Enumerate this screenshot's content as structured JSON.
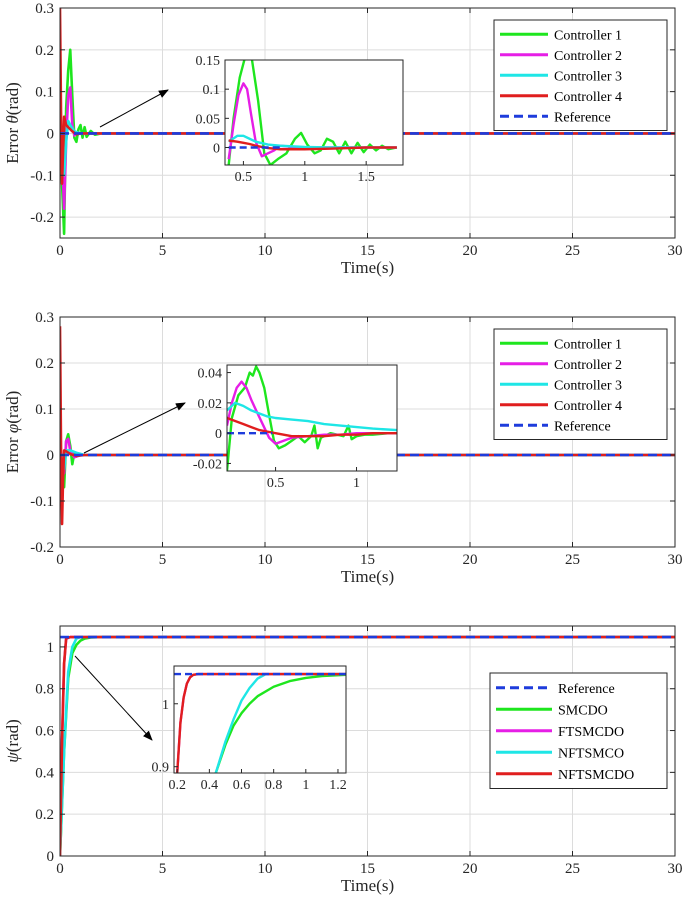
{
  "chart_data": [
    {
      "type": "line",
      "xlabel": "Time(s)",
      "ylabel_prefix": "Error ",
      "ylabel_symbol": "θ",
      "ylabel_suffix": "(rad)",
      "xlim": [
        0,
        30
      ],
      "ylim": [
        -0.25,
        0.3
      ],
      "xticks": [
        0,
        5,
        10,
        15,
        20,
        25,
        30
      ],
      "yticks": [
        -0.2,
        -0.1,
        0,
        0.1,
        0.2,
        0.3
      ],
      "legend_position": "top-right",
      "grid": true,
      "series": [
        {
          "name": "Controller 1",
          "color": "#1ee61e",
          "dash": false,
          "x": [
            0,
            0.1,
            0.2,
            0.3,
            0.4,
            0.5,
            0.6,
            0.7,
            0.8,
            0.9,
            1.0,
            1.1,
            1.2,
            1.3,
            1.5,
            1.7,
            2.0,
            30
          ],
          "y": [
            0,
            -0.12,
            -0.24,
            0.06,
            0.15,
            0.2,
            0.09,
            -0.01,
            -0.02,
            0.01,
            0.02,
            -0.01,
            0.015,
            -0.008,
            0.006,
            -0.003,
            0,
            0
          ]
        },
        {
          "name": "Controller 2",
          "color": "#e61ee6",
          "dash": false,
          "x": [
            0,
            0.1,
            0.2,
            0.3,
            0.4,
            0.5,
            0.6,
            0.7,
            0.8,
            1.0,
            30
          ],
          "y": [
            0,
            -0.05,
            -0.18,
            -0.02,
            0.09,
            0.11,
            0.02,
            -0.005,
            0.002,
            0,
            0
          ]
        },
        {
          "name": "Controller 3",
          "color": "#1ee6e6",
          "dash": false,
          "x": [
            0,
            0.1,
            0.2,
            0.3,
            0.4,
            0.5,
            0.7,
            1.0,
            30
          ],
          "y": [
            0,
            -0.04,
            -0.1,
            -0.02,
            0.03,
            0.02,
            0.005,
            0,
            0
          ]
        },
        {
          "name": "Controller 4",
          "color": "#e01e1e",
          "dash": false,
          "x": [
            0,
            0.05,
            0.1,
            0.15,
            0.2,
            0.3,
            0.4,
            0.5,
            0.6,
            0.8,
            1.0,
            1.2,
            30
          ],
          "y": [
            0.3,
            0.05,
            -0.12,
            -0.04,
            0.04,
            0.02,
            0.015,
            0.01,
            0.005,
            -0.002,
            0,
            0,
            0
          ]
        },
        {
          "name": "Reference",
          "color": "#1e3cdc",
          "dash": true,
          "x": [
            0,
            30
          ],
          "y": [
            0,
            0
          ]
        }
      ],
      "inset": {
        "xlim": [
          0.35,
          1.8
        ],
        "ylim": [
          -0.03,
          0.15
        ],
        "xticks": [
          0.5,
          1,
          1.5
        ],
        "xtick_labels": [
          "0.5",
          "1",
          "1.5"
        ],
        "yticks": [
          0,
          0.05,
          0.1,
          0.15
        ],
        "ytick_labels": [
          "0",
          "0.05",
          "0.1",
          "0.15"
        ],
        "series": [
          {
            "color": "#1ee61e",
            "x": [
              0.38,
              0.42,
              0.47,
              0.52,
              0.57,
              0.62,
              0.67,
              0.72,
              0.78,
              0.85,
              0.92,
              0.97,
              1.02,
              1.08,
              1.13,
              1.18,
              1.23,
              1.28,
              1.33,
              1.38,
              1.43,
              1.48,
              1.53,
              1.58,
              1.63,
              1.68,
              1.75
            ],
            "y": [
              -0.03,
              0.05,
              0.12,
              0.16,
              0.15,
              0.08,
              -0.01,
              -0.03,
              -0.02,
              -0.01,
              0.015,
              0.025,
              0.005,
              -0.01,
              -0.005,
              0.015,
              0.01,
              -0.01,
              0.01,
              -0.01,
              0.008,
              -0.008,
              0.005,
              -0.005,
              0.003,
              -0.003,
              0
            ]
          },
          {
            "color": "#e61ee6",
            "x": [
              0.38,
              0.42,
              0.46,
              0.5,
              0.53,
              0.56,
              0.6,
              0.65,
              0.7,
              0.75,
              0.8,
              0.9,
              1.0,
              1.2,
              1.75
            ],
            "y": [
              -0.02,
              0.04,
              0.09,
              0.11,
              0.1,
              0.06,
              0.01,
              -0.015,
              -0.01,
              -0.005,
              0.003,
              0.001,
              0,
              0,
              0
            ]
          },
          {
            "color": "#1ee6e6",
            "x": [
              0.38,
              0.45,
              0.5,
              0.55,
              0.6,
              0.7,
              0.8,
              1.0,
              1.2,
              1.75
            ],
            "y": [
              0.01,
              0.02,
              0.02,
              0.015,
              0.01,
              0.005,
              0.003,
              0.001,
              0,
              0
            ]
          },
          {
            "color": "#e01e1e",
            "x": [
              0.38,
              0.45,
              0.5,
              0.55,
              0.6,
              0.7,
              0.8,
              1.0,
              1.2,
              1.5,
              1.75
            ],
            "y": [
              0.012,
              0.01,
              0.008,
              0.006,
              0.003,
              -0.001,
              -0.003,
              -0.003,
              -0.002,
              0,
              0
            ]
          },
          {
            "color": "#1e3cdc",
            "dash": true,
            "x": [
              0.38,
              0.8
            ],
            "y": [
              0,
              0
            ]
          }
        ]
      }
    },
    {
      "type": "line",
      "xlabel": "Time(s)",
      "ylabel_prefix": "Error ",
      "ylabel_symbol": "φ",
      "ylabel_suffix": "(rad)",
      "xlim": [
        0,
        30
      ],
      "ylim": [
        -0.2,
        0.3
      ],
      "xticks": [
        0,
        5,
        10,
        15,
        20,
        25,
        30
      ],
      "yticks": [
        -0.2,
        -0.1,
        0,
        0.1,
        0.2,
        0.3
      ],
      "legend_position": "top-right",
      "grid": true,
      "series": [
        {
          "name": "Controller 1",
          "color": "#1ee61e",
          "dash": false,
          "x": [
            0,
            0.1,
            0.2,
            0.3,
            0.4,
            0.5,
            0.6,
            0.7,
            0.8,
            1.0,
            30
          ],
          "y": [
            0,
            -0.05,
            -0.07,
            0.03,
            0.045,
            0.02,
            -0.02,
            0.005,
            -0.003,
            0,
            0
          ]
        },
        {
          "name": "Controller 2",
          "color": "#e61ee6",
          "dash": false,
          "x": [
            0,
            0.1,
            0.2,
            0.3,
            0.4,
            0.5,
            0.7,
            1.0,
            30
          ],
          "y": [
            0,
            -0.02,
            -0.04,
            0.03,
            0.035,
            0.01,
            -0.005,
            0,
            0
          ]
        },
        {
          "name": "Controller 3",
          "color": "#1ee6e6",
          "dash": false,
          "x": [
            0,
            0.1,
            0.2,
            0.3,
            0.5,
            0.8,
            1.2,
            30
          ],
          "y": [
            0,
            -0.02,
            -0.03,
            0.01,
            0.01,
            0.005,
            0,
            0
          ]
        },
        {
          "name": "Controller 4",
          "color": "#e01e1e",
          "dash": false,
          "x": [
            0,
            0.05,
            0.1,
            0.15,
            0.2,
            0.3,
            0.5,
            0.8,
            1.2,
            30
          ],
          "y": [
            0.28,
            0.02,
            -0.15,
            -0.05,
            0.01,
            0.008,
            0.002,
            -0.002,
            0,
            0
          ]
        },
        {
          "name": "Reference",
          "color": "#1e3cdc",
          "dash": true,
          "x": [
            0,
            30
          ],
          "y": [
            0,
            0
          ]
        }
      ],
      "inset": {
        "xlim": [
          0.2,
          1.25
        ],
        "ylim": [
          -0.025,
          0.045
        ],
        "xticks": [
          0.5,
          1
        ],
        "xtick_labels": [
          "0.5",
          "1"
        ],
        "yticks": [
          -0.02,
          0,
          0.02,
          0.04
        ],
        "ytick_labels": [
          "-0.02",
          "0",
          "0.02",
          "0.04"
        ],
        "series": [
          {
            "color": "#1ee61e",
            "x": [
              0.2,
              0.23,
              0.27,
              0.31,
              0.34,
              0.36,
              0.38,
              0.4,
              0.43,
              0.46,
              0.49,
              0.52,
              0.56,
              0.6,
              0.64,
              0.68,
              0.72,
              0.74,
              0.76,
              0.78,
              0.8,
              0.84,
              0.88,
              0.92,
              0.95,
              0.97,
              1.0,
              1.05,
              1.1,
              1.2,
              1.25
            ],
            "y": [
              -0.025,
              0.01,
              0.025,
              0.03,
              0.04,
              0.038,
              0.044,
              0.04,
              0.03,
              0.012,
              -0.005,
              -0.01,
              -0.008,
              -0.005,
              -0.002,
              -0.006,
              -0.002,
              0.005,
              -0.01,
              -0.003,
              -0.002,
              0,
              -0.001,
              -0.002,
              0.005,
              -0.004,
              -0.002,
              -0.001,
              -0.001,
              0,
              0
            ]
          },
          {
            "color": "#e61ee6",
            "x": [
              0.2,
              0.23,
              0.26,
              0.29,
              0.32,
              0.35,
              0.38,
              0.42,
              0.46,
              0.5,
              0.55,
              0.6,
              0.7,
              0.8,
              0.9,
              1.0,
              1.1,
              1.25
            ],
            "y": [
              0.005,
              0.02,
              0.03,
              0.034,
              0.03,
              0.022,
              0.015,
              0.006,
              -0.003,
              -0.007,
              -0.005,
              -0.003,
              -0.002,
              -0.001,
              -0.001,
              0,
              0,
              0
            ]
          },
          {
            "color": "#1ee6e6",
            "x": [
              0.2,
              0.25,
              0.3,
              0.35,
              0.4,
              0.45,
              0.5,
              0.6,
              0.7,
              0.8,
              0.9,
              1.0,
              1.1,
              1.25
            ],
            "y": [
              0.015,
              0.02,
              0.018,
              0.015,
              0.013,
              0.011,
              0.01,
              0.009,
              0.008,
              0.006,
              0.005,
              0.004,
              0.003,
              0.002
            ]
          },
          {
            "color": "#e01e1e",
            "x": [
              0.2,
              0.25,
              0.3,
              0.35,
              0.4,
              0.45,
              0.5,
              0.55,
              0.6,
              0.7,
              0.8,
              0.9,
              1.0,
              1.1,
              1.25
            ],
            "y": [
              0.01,
              0.008,
              0.006,
              0.004,
              0.002,
              0.001,
              0,
              -0.001,
              -0.002,
              -0.002,
              -0.002,
              -0.001,
              -0.001,
              0,
              0
            ]
          },
          {
            "color": "#1e3cdc",
            "dash": true,
            "x": [
              0.2,
              0.48
            ],
            "y": [
              0,
              0
            ]
          }
        ]
      }
    },
    {
      "type": "line",
      "xlabel": "Time(s)",
      "ylabel_prefix": "",
      "ylabel_symbol": "ψ",
      "ylabel_suffix": "(rad)",
      "xlim": [
        0,
        30
      ],
      "ylim": [
        0,
        1.1
      ],
      "xticks": [
        0,
        5,
        10,
        15,
        20,
        25,
        30
      ],
      "yticks": [
        0,
        0.2,
        0.4,
        0.6,
        0.8,
        1
      ],
      "legend_position": "right",
      "grid": true,
      "series": [
        {
          "name": "Reference",
          "color": "#1e3cdc",
          "dash": true,
          "x": [
            0,
            30
          ],
          "y": [
            1.0472,
            1.0472
          ]
        },
        {
          "name": "SMCDO",
          "color": "#1ee61e",
          "dash": false,
          "x": [
            0,
            0.2,
            0.4,
            0.6,
            0.8,
            1.0,
            1.2,
            1.5,
            2.0,
            30
          ],
          "y": [
            0,
            0.5,
            0.85,
            0.97,
            1.01,
            1.03,
            1.04,
            1.045,
            1.0472,
            1.0472
          ]
        },
        {
          "name": "FTSMCDO",
          "color": "#e61ee6",
          "dash": false,
          "x": [
            0,
            0.1,
            0.2,
            0.3,
            0.5,
            0.7,
            30
          ],
          "y": [
            0,
            0.55,
            0.92,
            1.04,
            1.0472,
            1.0472,
            1.0472
          ]
        },
        {
          "name": "NFTSMCO",
          "color": "#1ee6e6",
          "dash": false,
          "x": [
            0,
            0.2,
            0.4,
            0.6,
            0.8,
            1.0,
            30
          ],
          "y": [
            0,
            0.5,
            0.88,
            1.0,
            1.04,
            1.0472,
            1.0472
          ]
        },
        {
          "name": "NFTSMCDO",
          "color": "#e01e1e",
          "dash": false,
          "x": [
            0,
            0.1,
            0.2,
            0.3,
            0.5,
            0.7,
            30
          ],
          "y": [
            0,
            0.55,
            0.92,
            1.04,
            1.0472,
            1.0472,
            1.0472
          ]
        }
      ],
      "inset": {
        "xlim": [
          0.18,
          1.25
        ],
        "ylim": [
          0.89,
          1.06
        ],
        "xticks": [
          0.2,
          0.4,
          0.6,
          0.8,
          1,
          1.2
        ],
        "xtick_labels": [
          "0.2",
          "0.4",
          "0.6",
          "0.8",
          "1",
          "1.2"
        ],
        "yticks": [
          0.9,
          1
        ],
        "ytick_labels": [
          "0.9",
          "1"
        ],
        "series": [
          {
            "color": "#1ee61e",
            "x": [
              0.44,
              0.5,
              0.55,
              0.6,
              0.65,
              0.7,
              0.8,
              0.9,
              1.0,
              1.1,
              1.25
            ],
            "y": [
              0.89,
              0.935,
              0.965,
              0.985,
              1.0,
              1.012,
              1.027,
              1.036,
              1.041,
              1.044,
              1.046
            ]
          },
          {
            "color": "#1ee6e6",
            "x": [
              0.44,
              0.5,
              0.55,
              0.6,
              0.65,
              0.7,
              0.75,
              0.8,
              1.25
            ],
            "y": [
              0.89,
              0.94,
              0.975,
              1.005,
              1.025,
              1.04,
              1.047,
              1.0472,
              1.0472
            ]
          },
          {
            "color": "#e61ee6",
            "x": [
              0.2,
              0.22,
              0.24,
              0.26,
              0.28,
              0.3,
              0.33,
              1.25
            ],
            "y": [
              0.89,
              0.97,
              1.01,
              1.032,
              1.042,
              1.046,
              1.0472,
              1.0472
            ]
          },
          {
            "color": "#e01e1e",
            "x": [
              0.2,
              0.22,
              0.24,
              0.26,
              0.28,
              0.3,
              0.33,
              1.25
            ],
            "y": [
              0.89,
              0.97,
              1.01,
              1.032,
              1.042,
              1.046,
              1.0472,
              1.0472
            ]
          },
          {
            "color": "#1e3cdc",
            "dash": true,
            "x": [
              0.18,
              1.25
            ],
            "y": [
              1.0472,
              1.0472
            ]
          }
        ]
      }
    }
  ]
}
